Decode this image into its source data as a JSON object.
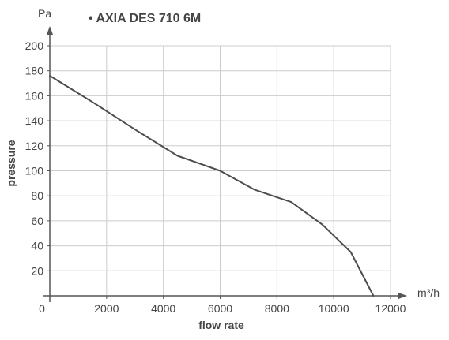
{
  "chart_data": {
    "type": "line",
    "title": "• AXIA DES 710 6M",
    "xlabel": "flow rate",
    "ylabel": "pressure",
    "x_unit": "m³/h",
    "y_unit": "Pa",
    "origin_label": "0",
    "xlim": [
      0,
      12000
    ],
    "ylim": [
      0,
      200
    ],
    "x_ticks": [
      2000,
      4000,
      6000,
      8000,
      10000,
      12000
    ],
    "y_ticks": [
      20,
      40,
      60,
      80,
      100,
      120,
      140,
      160,
      180,
      200
    ],
    "grid": true,
    "series": [
      {
        "x": [
          0,
          1500,
          3000,
          4500,
          6000,
          7200,
          8500,
          9600,
          10600,
          11400
        ],
        "y": [
          176,
          155,
          133,
          112,
          100,
          85,
          75,
          57,
          35,
          0
        ]
      }
    ]
  },
  "colors": {
    "line": "#4d4d4d",
    "grid": "#cccccc",
    "axis": "#555555",
    "text": "#444444"
  }
}
